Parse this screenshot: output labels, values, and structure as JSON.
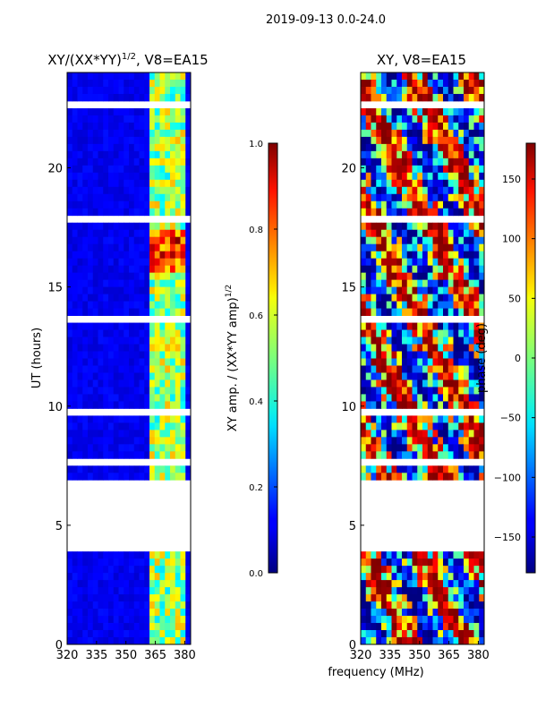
{
  "suptitle": "2019-09-13 0.0-24.0",
  "xlabel": "frequency (MHz)",
  "chart_data": [
    {
      "type": "heatmap",
      "title_main": "XY/(XX*YY)",
      "title_sup": "1/2",
      "title_suffix": ", V8=EA15",
      "ylabel": "UT (hours)",
      "xlim": [
        320,
        383
      ],
      "ylim": [
        0,
        24
      ],
      "xticks": [
        "320",
        "335",
        "350",
        "365",
        "380"
      ],
      "xtick_values": [
        320,
        335,
        350,
        365,
        380
      ],
      "yticks": [
        "0",
        "5",
        "10",
        "15",
        "20"
      ],
      "ytick_values": [
        0,
        5,
        10,
        15,
        20
      ],
      "gaps_hours": [
        [
          3.9,
          7.0
        ],
        [
          7.5,
          7.8
        ],
        [
          9.6,
          9.8
        ],
        [
          13.5,
          13.7
        ],
        [
          17.8,
          17.95
        ],
        [
          22.6,
          22.8
        ]
      ],
      "bright_channels_mhz": [
        364.5,
        368.5,
        372.5,
        377.0,
        380.0
      ],
      "colorbar": {
        "label": "XY amp. / (XX*YY amp)",
        "label_sup": "1/2",
        "range": [
          0.0,
          1.0
        ],
        "ticks": [
          "0.0",
          "0.2",
          "0.4",
          "0.6",
          "0.8",
          "1.0"
        ],
        "tick_values": [
          0.0,
          0.2,
          0.4,
          0.6,
          0.8,
          1.0
        ]
      }
    },
    {
      "type": "heatmap",
      "title": "XY, V8=EA15",
      "xlim": [
        320,
        383
      ],
      "ylim": [
        0,
        24
      ],
      "xticks": [
        "320",
        "335",
        "350",
        "365",
        "380"
      ],
      "xtick_values": [
        320,
        335,
        350,
        365,
        380
      ],
      "yticks": [
        "0",
        "5",
        "10",
        "15",
        "20"
      ],
      "ytick_values": [
        0,
        5,
        10,
        15,
        20
      ],
      "gaps_hours": [
        [
          3.9,
          7.0
        ],
        [
          7.5,
          7.8
        ],
        [
          9.6,
          9.8
        ],
        [
          13.5,
          13.7
        ],
        [
          17.8,
          17.95
        ],
        [
          22.6,
          22.8
        ]
      ],
      "colorbar": {
        "label": "phase (deg)",
        "range": [
          -180,
          180
        ],
        "ticks": [
          "−150",
          "−100",
          "−50",
          "0",
          "50",
          "100",
          "150"
        ],
        "tick_values": [
          -150,
          -100,
          -50,
          0,
          50,
          100,
          150
        ]
      }
    }
  ]
}
